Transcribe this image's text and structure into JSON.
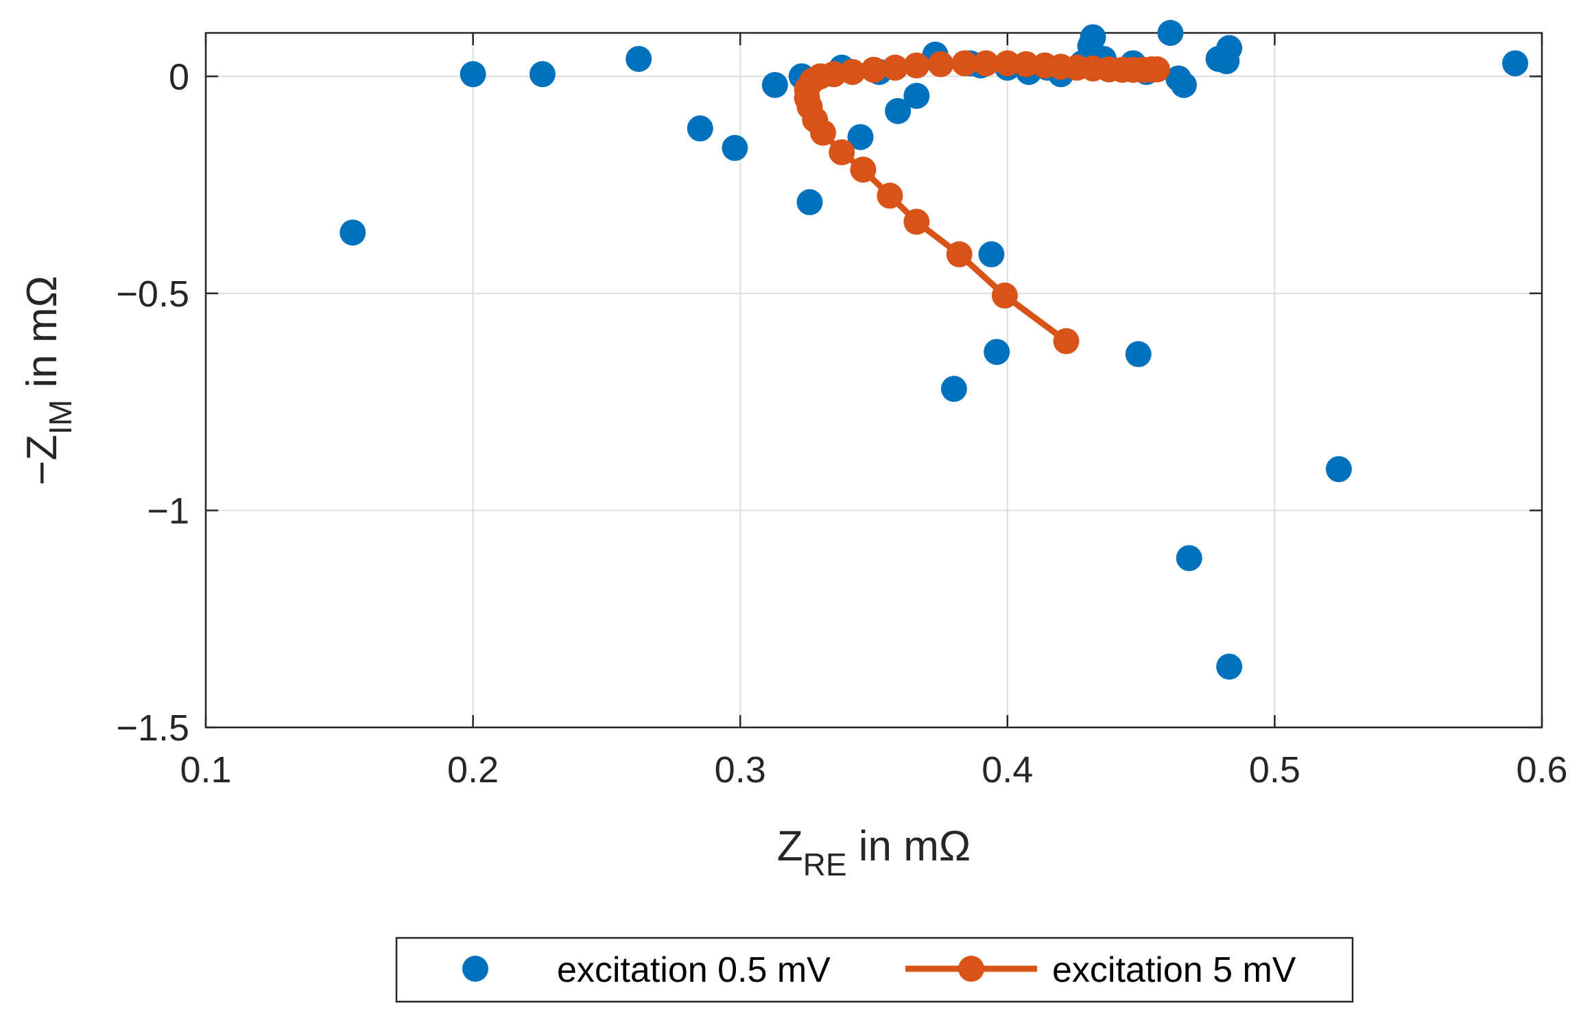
{
  "chart_data": {
    "type": "scatter",
    "title": "",
    "xlabel": {
      "main": "Z",
      "sub": "RE",
      "suffix": " in mΩ"
    },
    "ylabel": {
      "prefix": "−Z",
      "sub": "IM",
      "suffix": " in mΩ"
    },
    "xlim": [
      0.1,
      0.6
    ],
    "ylim": [
      -1.5,
      0.1
    ],
    "xticks": [
      0.1,
      0.2,
      0.3,
      0.4,
      0.5,
      0.6
    ],
    "yticks": [
      -1.5,
      -1,
      -0.5,
      0
    ],
    "xtick_labels": [
      "0.1",
      "0.2",
      "0.3",
      "0.4",
      "0.5",
      "0.6"
    ],
    "ytick_labels": [
      "−1.5",
      "−1",
      "−0.5",
      "0"
    ],
    "grid": true,
    "legend_position": "bottom-outside",
    "series": [
      {
        "name": "excitation 0.5 mV",
        "style": "markers",
        "color": "#0072BD",
        "points": [
          [
            0.155,
            -0.36
          ],
          [
            0.2,
            0.005
          ],
          [
            0.226,
            0.005
          ],
          [
            0.262,
            0.04
          ],
          [
            0.285,
            -0.12
          ],
          [
            0.298,
            -0.165
          ],
          [
            0.313,
            -0.02
          ],
          [
            0.323,
            0.0
          ],
          [
            0.326,
            -0.29
          ],
          [
            0.338,
            0.02
          ],
          [
            0.345,
            -0.14
          ],
          [
            0.352,
            0.01
          ],
          [
            0.359,
            -0.08
          ],
          [
            0.366,
            -0.045
          ],
          [
            0.373,
            0.05
          ],
          [
            0.38,
            -0.72
          ],
          [
            0.386,
            0.03
          ],
          [
            0.39,
            0.025
          ],
          [
            0.394,
            -0.41
          ],
          [
            0.396,
            -0.635
          ],
          [
            0.4,
            0.02
          ],
          [
            0.408,
            0.01
          ],
          [
            0.415,
            0.02
          ],
          [
            0.42,
            0.005
          ],
          [
            0.428,
            0.03
          ],
          [
            0.431,
            0.07
          ],
          [
            0.432,
            0.09
          ],
          [
            0.436,
            0.04
          ],
          [
            0.447,
            0.03
          ],
          [
            0.449,
            -0.64
          ],
          [
            0.452,
            0.01
          ],
          [
            0.461,
            0.1
          ],
          [
            0.464,
            -0.005
          ],
          [
            0.466,
            -0.02
          ],
          [
            0.468,
            -1.11
          ],
          [
            0.479,
            0.04
          ],
          [
            0.482,
            0.035
          ],
          [
            0.483,
            0.065
          ],
          [
            0.483,
            -1.36
          ],
          [
            0.524,
            -0.905
          ],
          [
            0.59,
            0.03
          ]
        ]
      },
      {
        "name": "excitation 5 mV",
        "style": "line-markers",
        "color": "#D95319",
        "points": [
          [
            0.422,
            -0.61
          ],
          [
            0.399,
            -0.505
          ],
          [
            0.382,
            -0.41
          ],
          [
            0.366,
            -0.335
          ],
          [
            0.356,
            -0.275
          ],
          [
            0.346,
            -0.215
          ],
          [
            0.338,
            -0.175
          ],
          [
            0.331,
            -0.13
          ],
          [
            0.328,
            -0.1
          ],
          [
            0.326,
            -0.07
          ],
          [
            0.325,
            -0.05
          ],
          [
            0.325,
            -0.03
          ],
          [
            0.327,
            -0.01
          ],
          [
            0.33,
            0.0
          ],
          [
            0.335,
            0.005
          ],
          [
            0.342,
            0.01
          ],
          [
            0.35,
            0.015
          ],
          [
            0.358,
            0.02
          ],
          [
            0.366,
            0.025
          ],
          [
            0.375,
            0.028
          ],
          [
            0.384,
            0.03
          ],
          [
            0.392,
            0.03
          ],
          [
            0.4,
            0.03
          ],
          [
            0.407,
            0.028
          ],
          [
            0.414,
            0.025
          ],
          [
            0.42,
            0.022
          ],
          [
            0.426,
            0.02
          ],
          [
            0.432,
            0.018
          ],
          [
            0.438,
            0.016
          ],
          [
            0.443,
            0.015
          ],
          [
            0.447,
            0.015
          ],
          [
            0.451,
            0.015
          ],
          [
            0.454,
            0.016
          ],
          [
            0.456,
            0.016
          ]
        ]
      }
    ]
  }
}
